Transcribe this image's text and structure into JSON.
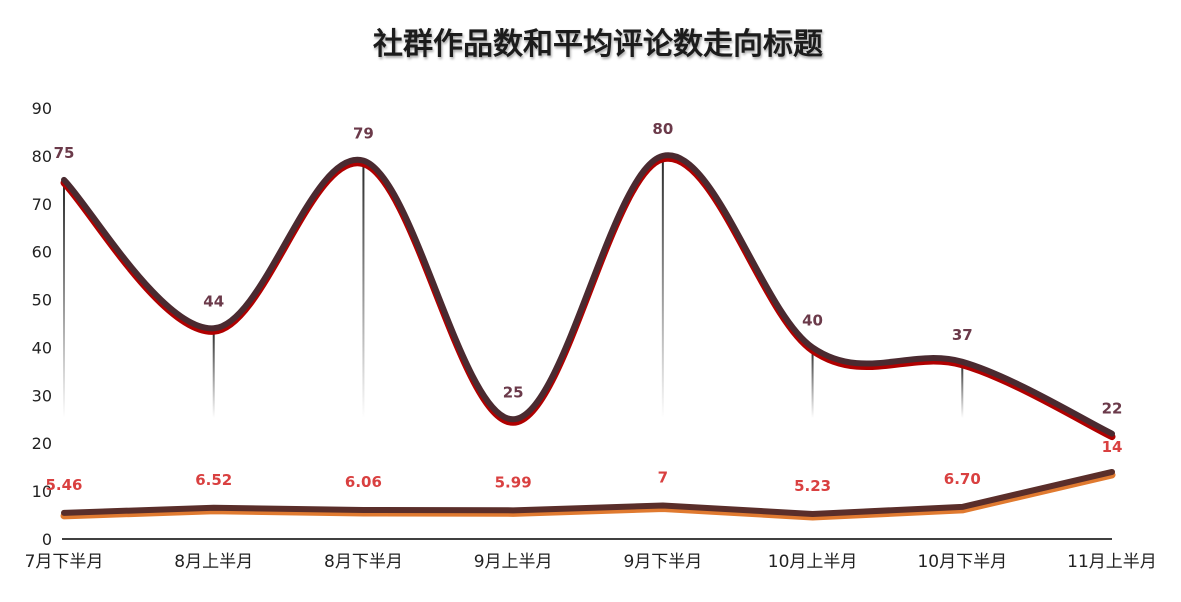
{
  "chart_data": {
    "type": "line",
    "title": "社群作品数和平均评论数走向标题",
    "categories": [
      "7月下半月",
      "8月上半月",
      "8月下半月",
      "9月上半月",
      "9月下半月",
      "10月上半月",
      "10月下半月",
      "11月上半月"
    ],
    "ylim": [
      0,
      90
    ],
    "yticks": [
      0,
      10,
      20,
      30,
      40,
      50,
      60,
      70,
      80,
      90
    ],
    "grid": false,
    "legend": "none",
    "series": [
      {
        "values": [
          75,
          44,
          79,
          25,
          80,
          40,
          37,
          22
        ],
        "labels": [
          "75",
          "44",
          "79",
          "25",
          "80",
          "40",
          "37",
          "22"
        ],
        "color": "#b00000",
        "shadow_color": "#4a2a30",
        "label_color": "#6b3a4a",
        "smooth": true
      },
      {
        "values": [
          5.46,
          6.52,
          6.06,
          5.99,
          7,
          5.23,
          6.7,
          14
        ],
        "labels": [
          "5.46",
          "6.52",
          "6.06",
          "5.99",
          "7",
          "5.23",
          "6.70",
          "14"
        ],
        "color": "#e07a30",
        "shadow_color": "#5a2e2a",
        "label_color": "#d94040",
        "smooth": false
      }
    ]
  }
}
